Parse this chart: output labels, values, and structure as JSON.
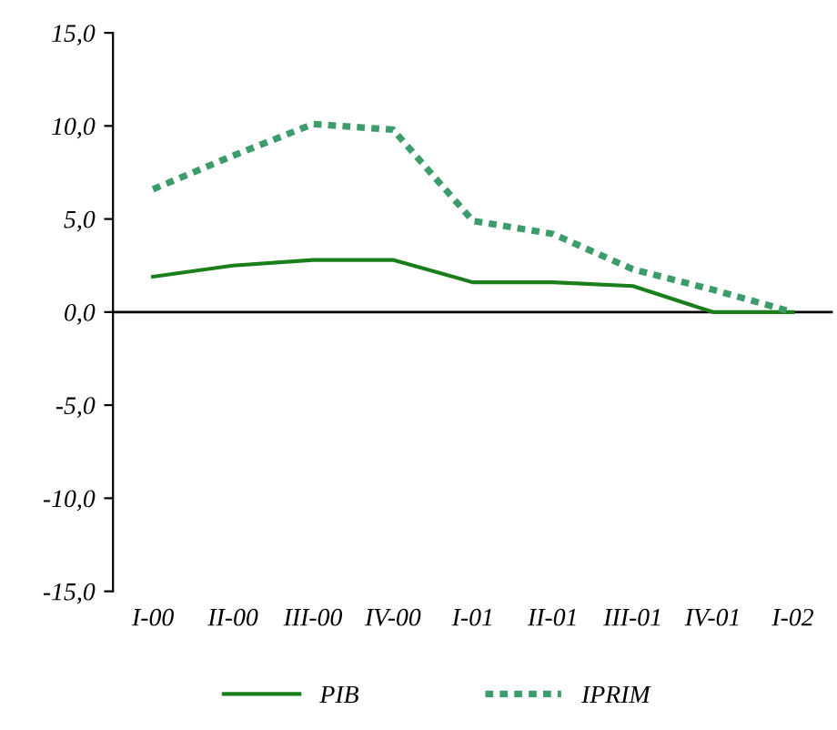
{
  "chart_data": {
    "type": "line",
    "categories": [
      "I-00",
      "II-00",
      "III-00",
      "IV-00",
      "I-01",
      "II-01",
      "III-01",
      "IV-01",
      "I-02"
    ],
    "series": [
      {
        "name": "PIB",
        "color": "#1a7f1a",
        "line_style": "solid",
        "values": [
          1.9,
          2.5,
          2.8,
          2.8,
          1.6,
          1.6,
          1.4,
          0.0,
          0.0
        ]
      },
      {
        "name": "IPRIM",
        "color": "#3c9c6c",
        "line_style": "dotted",
        "values": [
          6.6,
          8.4,
          10.1,
          9.8,
          4.9,
          4.2,
          2.3,
          1.2,
          0.0
        ]
      }
    ],
    "ylim": [
      -15,
      15
    ],
    "yticks": [
      {
        "value": -15,
        "label": "-15,0"
      },
      {
        "value": -10,
        "label": "-10,0"
      },
      {
        "value": -5,
        "label": "-5,0"
      },
      {
        "value": 0,
        "label": "0,0"
      },
      {
        "value": 5,
        "label": "5,0"
      },
      {
        "value": 10,
        "label": "10,0"
      },
      {
        "value": 15,
        "label": "15,0"
      }
    ],
    "ref_lines": [
      {
        "axis": "y",
        "value": 0,
        "color": "#000000"
      }
    ],
    "grid": false,
    "legend": "bottom",
    "marker": "none"
  }
}
